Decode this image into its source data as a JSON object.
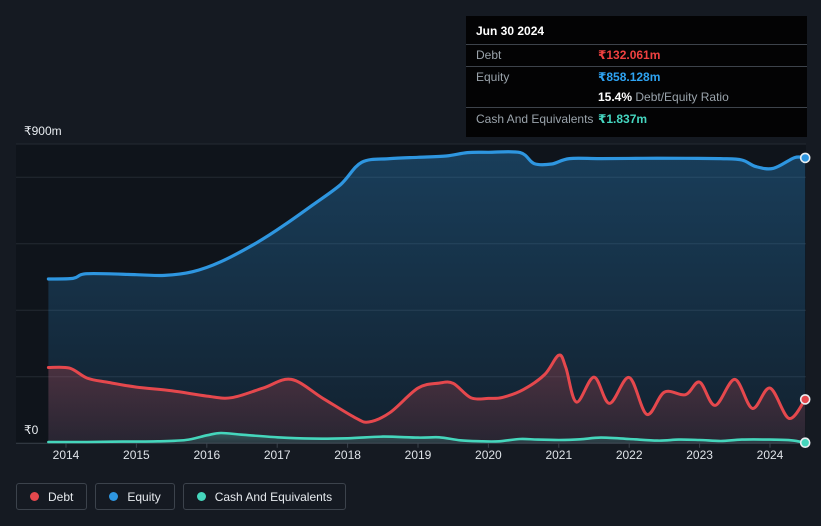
{
  "tooltip": {
    "date": "Jun 30 2024",
    "debt_label": "Debt",
    "debt_value": "₹132.061m",
    "equity_label": "Equity",
    "equity_value": "₹858.128m",
    "ratio_value": "15.4%",
    "ratio_label": "Debt/Equity Ratio",
    "cash_label": "Cash And Equivalents",
    "cash_value": "₹1.837m"
  },
  "legend": {
    "items": [
      {
        "label": "Debt",
        "color": "#e5484d"
      },
      {
        "label": "Equity",
        "color": "#2e96e0"
      },
      {
        "label": "Cash And Equivalents",
        "color": "#45d6bc"
      }
    ]
  },
  "colors": {
    "background": "#151a22",
    "plot_bg": "#0f141b",
    "grid": "#242a33",
    "axis": "#39414b",
    "text": "#e9edf1",
    "muted": "#9aa3ab",
    "tooltip_bg": "#030304",
    "debt": "#e5484d",
    "equity": "#2e96e0",
    "cash": "#45d6bc"
  },
  "chart_data": {
    "type": "area",
    "title": "",
    "xlabel": "",
    "ylabel": "",
    "x_range": [
      2013.75,
      2024.5
    ],
    "x_ticks": [
      "2014",
      "2015",
      "2016",
      "2017",
      "2018",
      "2019",
      "2020",
      "2021",
      "2022",
      "2023",
      "2024"
    ],
    "y_axis": {
      "min": 0,
      "max": 900,
      "top_label": "₹900m",
      "zero_label": "₹0",
      "gridlines": [
        900,
        800,
        600,
        400,
        200,
        0
      ],
      "unit": "₹m"
    },
    "grid": true,
    "legend_position": "bottom-left",
    "draw_order": [
      1,
      0,
      2
    ],
    "series": [
      {
        "name": "Debt",
        "color": "#e5484d",
        "width": 3,
        "fill_opacity": [
          0.28,
          0.1
        ],
        "points": [
          [
            2013.75,
            228
          ],
          [
            2014.05,
            226
          ],
          [
            2014.3,
            196
          ],
          [
            2014.6,
            183
          ],
          [
            2015.0,
            169
          ],
          [
            2015.5,
            158
          ],
          [
            2016.0,
            142
          ],
          [
            2016.35,
            137
          ],
          [
            2016.8,
            166
          ],
          [
            2017.2,
            192
          ],
          [
            2017.65,
            135
          ],
          [
            2018.1,
            78
          ],
          [
            2018.3,
            64
          ],
          [
            2018.6,
            92
          ],
          [
            2019.0,
            166
          ],
          [
            2019.3,
            181
          ],
          [
            2019.5,
            180
          ],
          [
            2019.75,
            137
          ],
          [
            2020.0,
            135
          ],
          [
            2020.2,
            138
          ],
          [
            2020.5,
            162
          ],
          [
            2020.8,
            207
          ],
          [
            2021.0,
            265
          ],
          [
            2021.1,
            228
          ],
          [
            2021.25,
            124
          ],
          [
            2021.5,
            199
          ],
          [
            2021.72,
            120
          ],
          [
            2022.0,
            198
          ],
          [
            2022.25,
            87
          ],
          [
            2022.5,
            154
          ],
          [
            2022.8,
            146
          ],
          [
            2023.0,
            184
          ],
          [
            2023.22,
            114
          ],
          [
            2023.5,
            192
          ],
          [
            2023.75,
            105
          ],
          [
            2024.0,
            166
          ],
          [
            2024.27,
            75
          ],
          [
            2024.5,
            132.061
          ]
        ]
      },
      {
        "name": "Equity",
        "color": "#2e96e0",
        "width": 3.2,
        "fill_opacity": [
          0.32,
          0.1
        ],
        "points": [
          [
            2013.75,
            494
          ],
          [
            2014.1,
            496
          ],
          [
            2014.3,
            510
          ],
          [
            2015.0,
            507
          ],
          [
            2015.4,
            505
          ],
          [
            2015.8,
            516
          ],
          [
            2016.2,
            546
          ],
          [
            2016.7,
            602
          ],
          [
            2017.1,
            656
          ],
          [
            2017.5,
            716
          ],
          [
            2017.9,
            778
          ],
          [
            2018.2,
            845
          ],
          [
            2018.6,
            856
          ],
          [
            2019.0,
            860
          ],
          [
            2019.4,
            864
          ],
          [
            2019.7,
            874
          ],
          [
            2020.0,
            875
          ],
          [
            2020.45,
            874
          ],
          [
            2020.65,
            841
          ],
          [
            2020.9,
            840
          ],
          [
            2021.15,
            856
          ],
          [
            2021.6,
            856
          ],
          [
            2022.2,
            857
          ],
          [
            2022.8,
            857
          ],
          [
            2023.3,
            856
          ],
          [
            2023.6,
            852
          ],
          [
            2023.8,
            832
          ],
          [
            2024.05,
            827
          ],
          [
            2024.35,
            859
          ],
          [
            2024.5,
            858.128
          ]
        ]
      },
      {
        "name": "Cash And Equivalents",
        "color": "#45d6bc",
        "width": 2.6,
        "fill_opacity": [
          0.3,
          0.1
        ],
        "points": [
          [
            2013.75,
            4
          ],
          [
            2014.3,
            4
          ],
          [
            2014.8,
            5
          ],
          [
            2015.3,
            6
          ],
          [
            2015.7,
            10
          ],
          [
            2016.0,
            24
          ],
          [
            2016.2,
            31
          ],
          [
            2016.5,
            26
          ],
          [
            2017.0,
            18
          ],
          [
            2017.5,
            14
          ],
          [
            2018.0,
            15
          ],
          [
            2018.5,
            20
          ],
          [
            2019.0,
            17
          ],
          [
            2019.3,
            18
          ],
          [
            2019.6,
            9
          ],
          [
            2019.9,
            6
          ],
          [
            2020.15,
            6
          ],
          [
            2020.45,
            13
          ],
          [
            2020.7,
            11
          ],
          [
            2021.0,
            10
          ],
          [
            2021.3,
            12
          ],
          [
            2021.6,
            17
          ],
          [
            2022.0,
            13
          ],
          [
            2022.4,
            8
          ],
          [
            2022.7,
            11
          ],
          [
            2023.0,
            10
          ],
          [
            2023.3,
            7
          ],
          [
            2023.6,
            11
          ],
          [
            2024.0,
            11
          ],
          [
            2024.3,
            9
          ],
          [
            2024.5,
            1.837
          ]
        ]
      }
    ]
  }
}
